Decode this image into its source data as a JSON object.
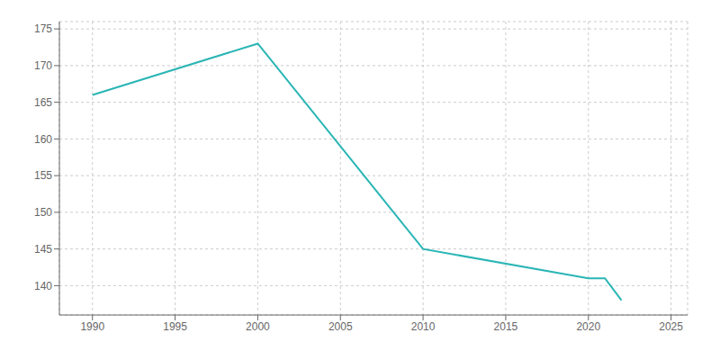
{
  "chart_data": {
    "type": "line",
    "x": [
      1990,
      2000,
      2010,
      2020,
      2021,
      2022
    ],
    "values": [
      166,
      173,
      145,
      141,
      141,
      138
    ],
    "color": "#2ab5b5",
    "xlim": [
      1988,
      2026
    ],
    "xticks": [
      1990,
      1995,
      2000,
      2005,
      2010,
      2015,
      2020,
      2025
    ],
    "ylim": [
      136,
      176
    ],
    "yticks": [
      140,
      145,
      150,
      155,
      160,
      165,
      170,
      175
    ],
    "grid": true
  }
}
